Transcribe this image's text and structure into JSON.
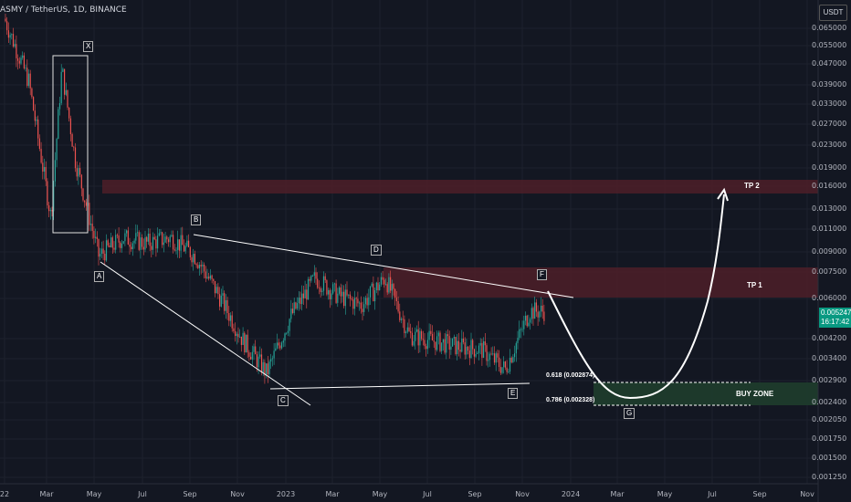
{
  "header": {
    "title": "ASMY / TetherUS, 1D, BINANCE"
  },
  "price_axis": {
    "unit_button": "USDT",
    "ticks": [
      "0.065000",
      "0.055000",
      "0.047000",
      "0.039000",
      "0.033000",
      "0.027000",
      "0.023000",
      "0.019000",
      "0.016000",
      "0.013000",
      "0.011000",
      "0.009000",
      "0.007500",
      "0.006000",
      "0.004200",
      "0.003400",
      "0.002900",
      "0.002400",
      "0.002050",
      "0.001750",
      "0.001500",
      "0.001250"
    ],
    "current_price": "0.005247",
    "countdown": "16:17:42"
  },
  "time_axis": {
    "ticks": [
      "22",
      "Mar",
      "May",
      "Jul",
      "Sep",
      "Nov",
      "2023",
      "Mar",
      "May",
      "Jul",
      "Sep",
      "Nov",
      "2024",
      "Mar",
      "May",
      "Jul",
      "Sep",
      "Nov"
    ]
  },
  "annotations": {
    "x_label": "X",
    "wave_labels": [
      "A",
      "B",
      "C",
      "D",
      "E",
      "F",
      "G"
    ],
    "tp1": "TP 1",
    "tp2": "TP 2",
    "buy_zone": "BUY ZONE",
    "fib_618": "0.618 (0.002874)",
    "fib_786": "0.786 (0.002328)"
  },
  "colors": {
    "background": "#131722",
    "up_candle": "#26a69a",
    "down_candle": "#ef5350",
    "target_zone": "#4a1e28",
    "buy_zone": "#1e3b2c",
    "price_tag": "#089981"
  },
  "chart_data": {
    "type": "candlestick",
    "title": "ASMY / TetherUS, 1D, BINANCE",
    "scale": "log",
    "ylim": [
      0.00115,
      0.075
    ],
    "x_range": [
      "2022-01",
      "2024-11"
    ],
    "price_path": [
      {
        "date": "2022-01",
        "price": 0.07
      },
      {
        "date": "2022-02",
        "price": 0.04
      },
      {
        "date": "2022-03",
        "price": 0.012
      },
      {
        "date": "2022-03-15",
        "price": 0.045
      },
      {
        "date": "2022-04",
        "price": 0.02
      },
      {
        "date": "2022-05",
        "price": 0.0085
      },
      {
        "date": "2022-06",
        "price": 0.01
      },
      {
        "date": "2022-07",
        "price": 0.0095
      },
      {
        "date": "2022-08",
        "price": 0.01
      },
      {
        "date": "2022-09",
        "price": 0.0085
      },
      {
        "date": "2022-10",
        "price": 0.006
      },
      {
        "date": "2022-11",
        "price": 0.004
      },
      {
        "date": "2022-12",
        "price": 0.003
      },
      {
        "date": "2023-01",
        "price": 0.005
      },
      {
        "date": "2023-02",
        "price": 0.007
      },
      {
        "date": "2023-03",
        "price": 0.006
      },
      {
        "date": "2023-04",
        "price": 0.0055
      },
      {
        "date": "2023-05",
        "price": 0.007
      },
      {
        "date": "2023-06",
        "price": 0.0042
      },
      {
        "date": "2023-07",
        "price": 0.004
      },
      {
        "date": "2023-08",
        "price": 0.0038
      },
      {
        "date": "2023-09",
        "price": 0.0037
      },
      {
        "date": "2023-10",
        "price": 0.0031
      },
      {
        "date": "2023-11",
        "price": 0.0052
      }
    ],
    "zones": [
      {
        "name": "TP 2",
        "low": 0.0155,
        "high": 0.0175
      },
      {
        "name": "TP 1",
        "low": 0.006,
        "high": 0.0078
      },
      {
        "name": "BUY ZONE",
        "low": 0.002328,
        "high": 0.002874
      }
    ]
  }
}
